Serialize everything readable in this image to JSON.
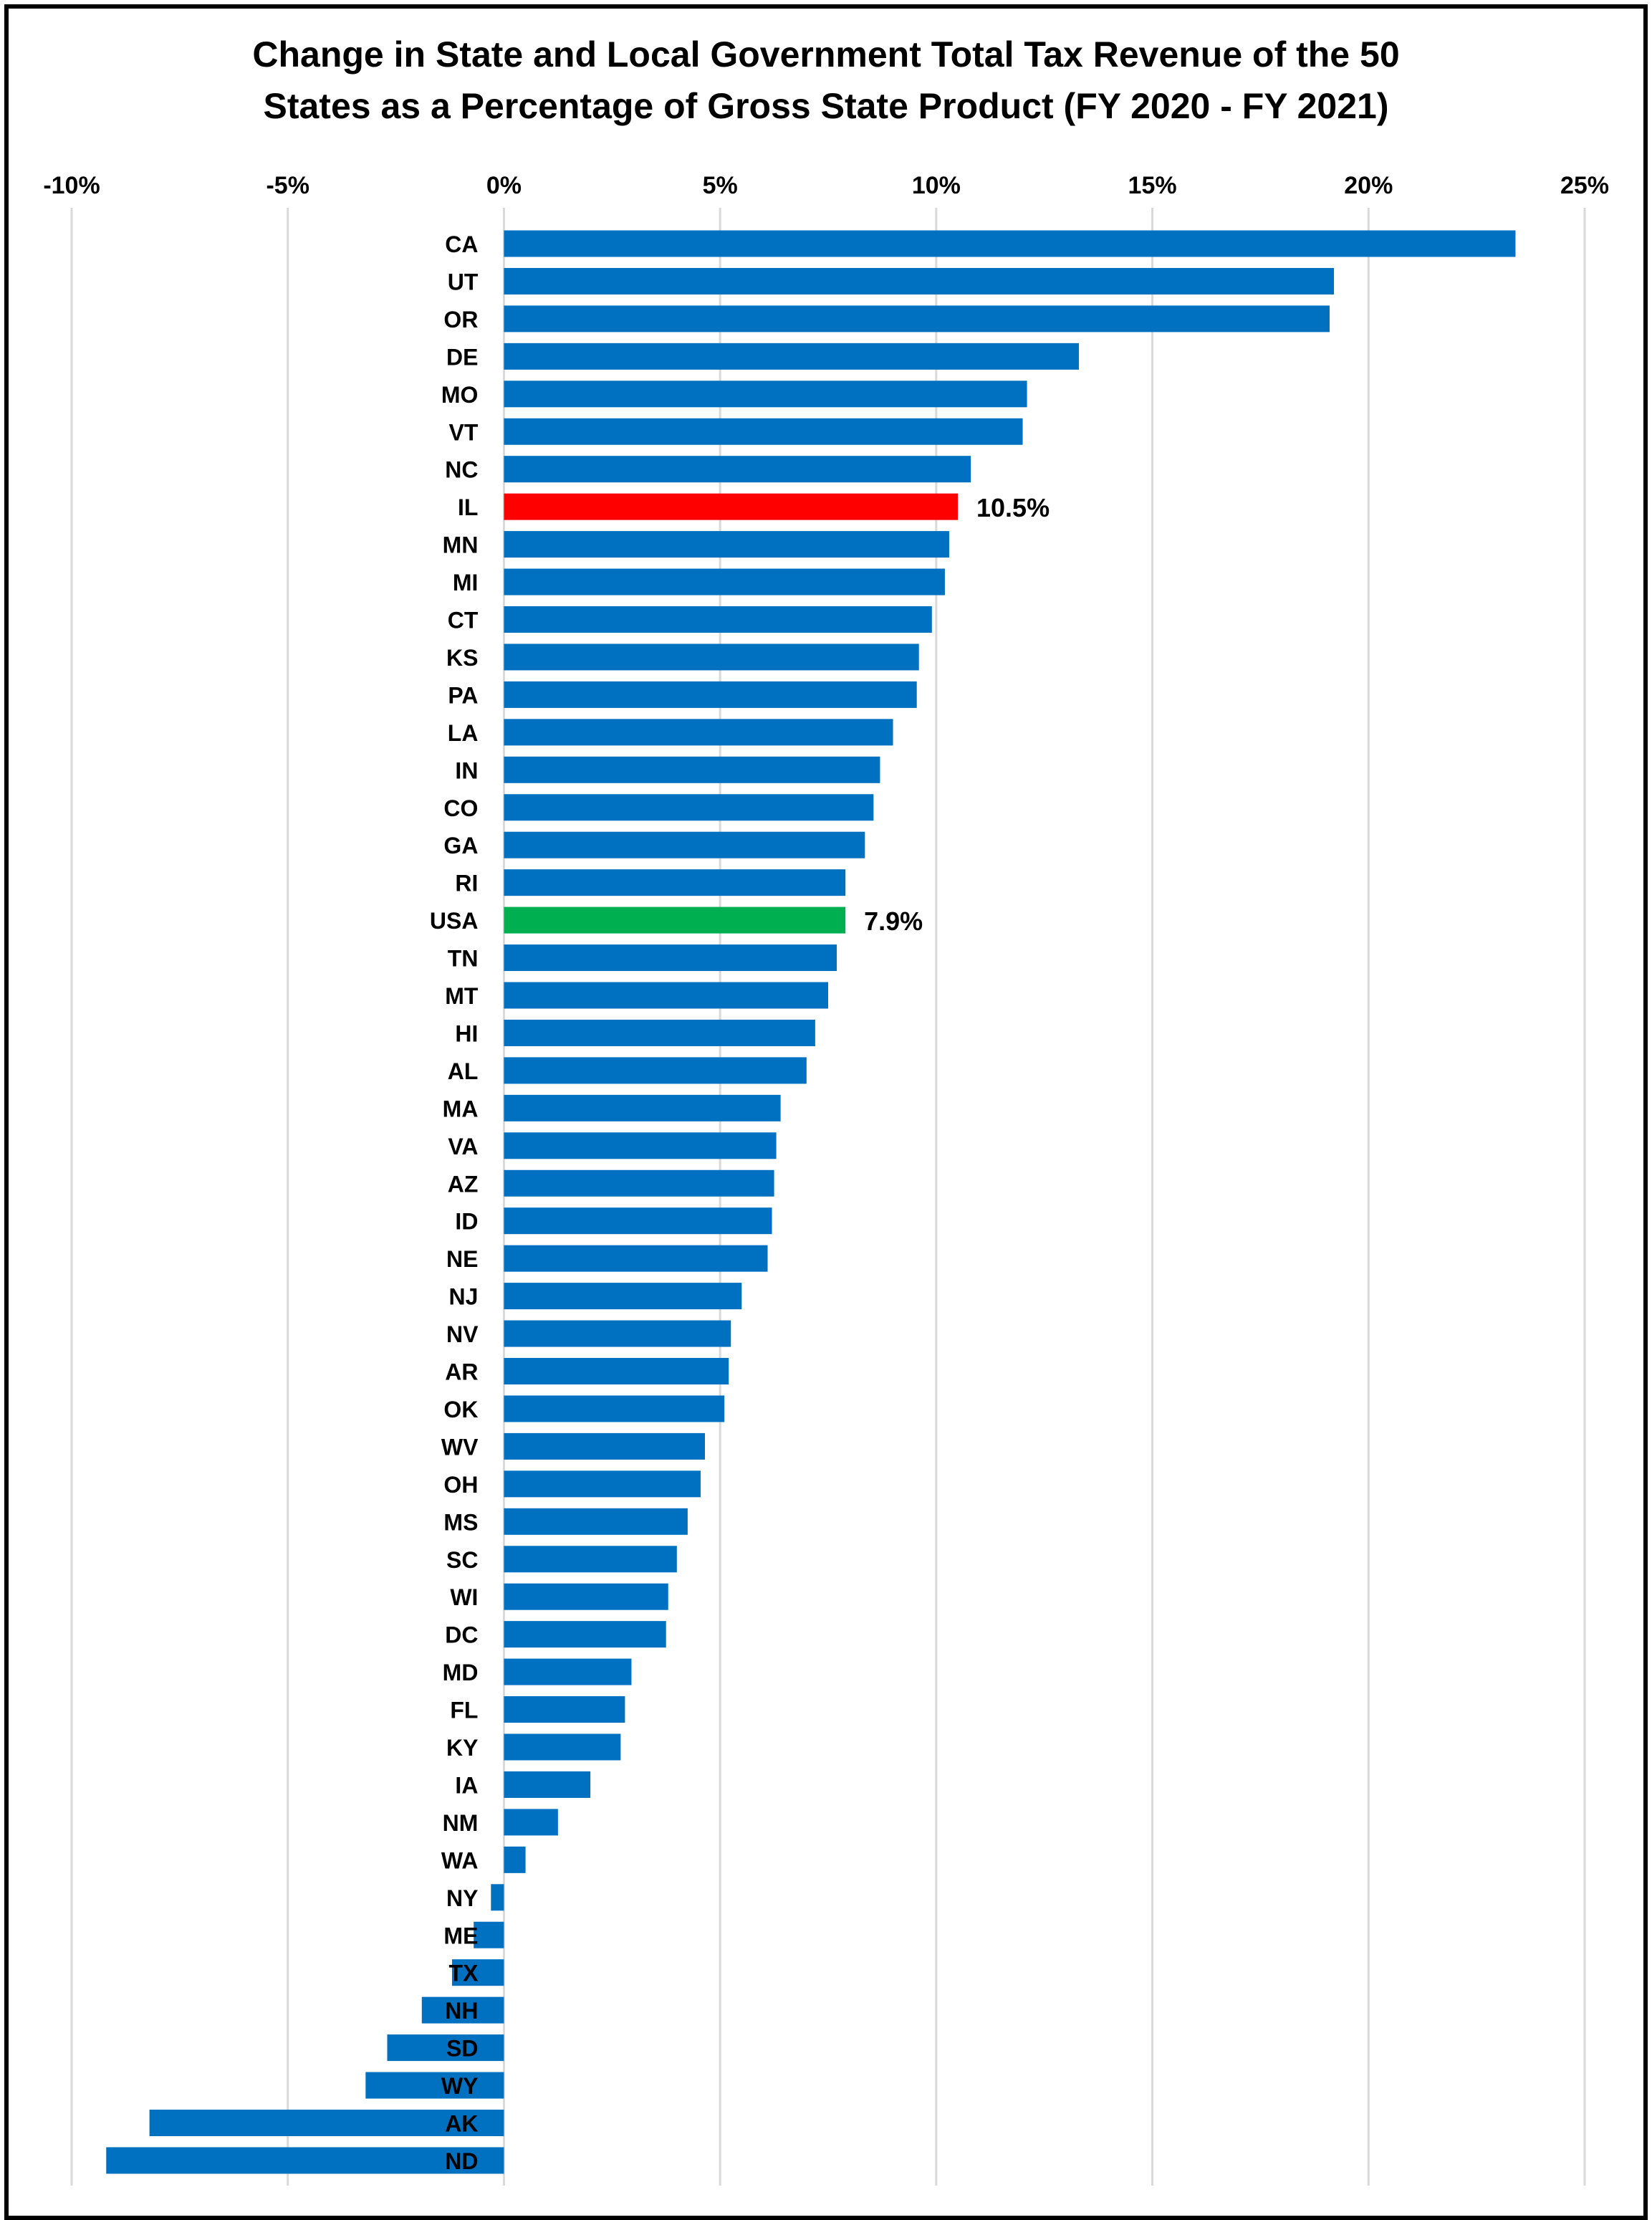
{
  "chart_data": {
    "type": "bar",
    "orientation": "horizontal",
    "title_lines": [
      "Change in State and Local Government Total Tax Revenue of the 50",
      "States as a Percentage of Gross State Product (FY 2020 - FY 2021)"
    ],
    "xlim": [
      -10,
      25
    ],
    "xticks": [
      -10,
      -5,
      0,
      5,
      10,
      15,
      20,
      25
    ],
    "xtick_labels": [
      "-10%",
      "-5%",
      "0%",
      "5%",
      "10%",
      "15%",
      "20%",
      "25%"
    ],
    "x_axis_position": "top",
    "grid": "vertical",
    "legend": "none",
    "colors": {
      "default": "#0070C0",
      "highlight_il": "#FF0000",
      "highlight_usa": "#00B050",
      "grid": "#D9D9D9"
    },
    "categories": [
      "CA",
      "UT",
      "OR",
      "DE",
      "MO",
      "VT",
      "NC",
      "IL",
      "MN",
      "MI",
      "CT",
      "KS",
      "PA",
      "LA",
      "IN",
      "CO",
      "GA",
      "RI",
      "USA",
      "TN",
      "MT",
      "HI",
      "AL",
      "MA",
      "VA",
      "AZ",
      "ID",
      "NE",
      "NJ",
      "NV",
      "AR",
      "OK",
      "WV",
      "OH",
      "MS",
      "SC",
      "WI",
      "DC",
      "MD",
      "FL",
      "KY",
      "IA",
      "NM",
      "WA",
      "NY",
      "ME",
      "TX",
      "NH",
      "SD",
      "WY",
      "AK",
      "ND"
    ],
    "values": [
      23.4,
      19.2,
      19.1,
      13.3,
      12.1,
      12.0,
      10.8,
      10.5,
      10.3,
      10.2,
      9.9,
      9.6,
      9.55,
      9.0,
      8.7,
      8.55,
      8.35,
      7.9,
      7.9,
      7.7,
      7.5,
      7.2,
      7.0,
      6.4,
      6.3,
      6.25,
      6.2,
      6.1,
      5.5,
      5.25,
      5.2,
      5.1,
      4.65,
      4.55,
      4.25,
      4.0,
      3.8,
      3.75,
      2.95,
      2.8,
      2.7,
      2.0,
      1.25,
      0.5,
      -0.3,
      -0.7,
      -1.2,
      -1.9,
      -2.7,
      -3.2,
      -8.2,
      -9.2
    ],
    "highlights": {
      "IL": {
        "color": "#FF0000",
        "label": "10.5%"
      },
      "USA": {
        "color": "#00B050",
        "label": "7.9%"
      }
    }
  }
}
